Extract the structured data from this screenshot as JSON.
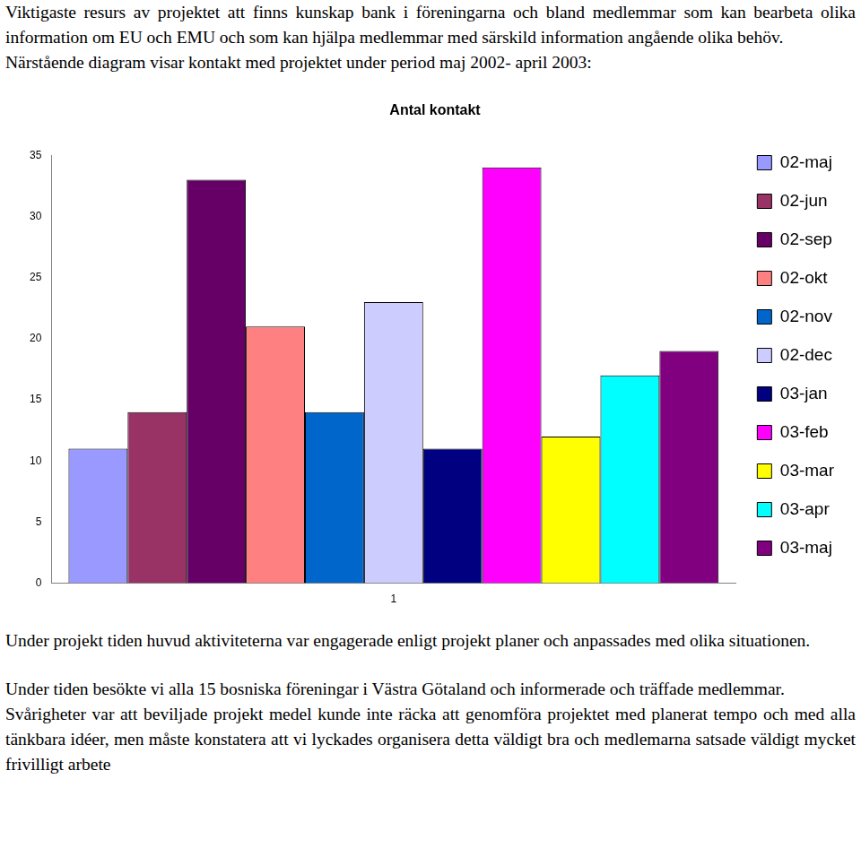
{
  "text_before": [
    "Viktigaste resurs av projektet att finns kunskap bank i föreningarna och bland medlemmar som kan bearbeta olika information om EU och EMU och som kan hjälpa medlemmar med särskild information angående olika behöv.",
    "Närstående diagram visar kontakt med projektet under period maj 2002- april 2003:"
  ],
  "chart_data": {
    "type": "bar",
    "title": "Antal kontakt",
    "categories": [
      "1"
    ],
    "series": [
      {
        "name": "02-maj",
        "color": "#9999ff",
        "values": [
          11
        ]
      },
      {
        "name": "02-jun",
        "color": "#993366",
        "values": [
          14
        ]
      },
      {
        "name": "02-sep",
        "color": "#660066",
        "values": [
          33
        ]
      },
      {
        "name": "02-okt",
        "color": "#ff8080",
        "values": [
          21
        ]
      },
      {
        "name": "02-nov",
        "color": "#0066cc",
        "values": [
          14
        ]
      },
      {
        "name": "02-dec",
        "color": "#ccccff",
        "values": [
          23
        ]
      },
      {
        "name": "03-jan",
        "color": "#000080",
        "values": [
          11
        ]
      },
      {
        "name": "03-feb",
        "color": "#ff00ff",
        "values": [
          34
        ]
      },
      {
        "name": "03-mar",
        "color": "#ffff00",
        "values": [
          12
        ]
      },
      {
        "name": "03-apr",
        "color": "#00ffff",
        "values": [
          17
        ]
      },
      {
        "name": "03-maj",
        "color": "#800080",
        "values": [
          19
        ]
      }
    ],
    "ylim": [
      0,
      35
    ],
    "yticks": [
      0,
      5,
      10,
      15,
      20,
      25,
      30,
      35
    ],
    "grid": false,
    "legend": "right"
  },
  "text_after": [
    "Under projekt tiden huvud aktiviteterna var engagerade enligt projekt planer och anpassades med olika situationen.",
    "Under tiden besökte vi alla 15 bosniska föreningar i Västra Götaland och informerade och träffade medlemmar.",
    "Svårigheter var att beviljade projekt medel kunde inte räcka att genomföra projektet med planerat tempo och med alla tänkbara idéer, men måste konstatera att vi lyckades organisera detta väldigt bra och medlemarna satsade väldigt mycket frivilligt arbete"
  ]
}
